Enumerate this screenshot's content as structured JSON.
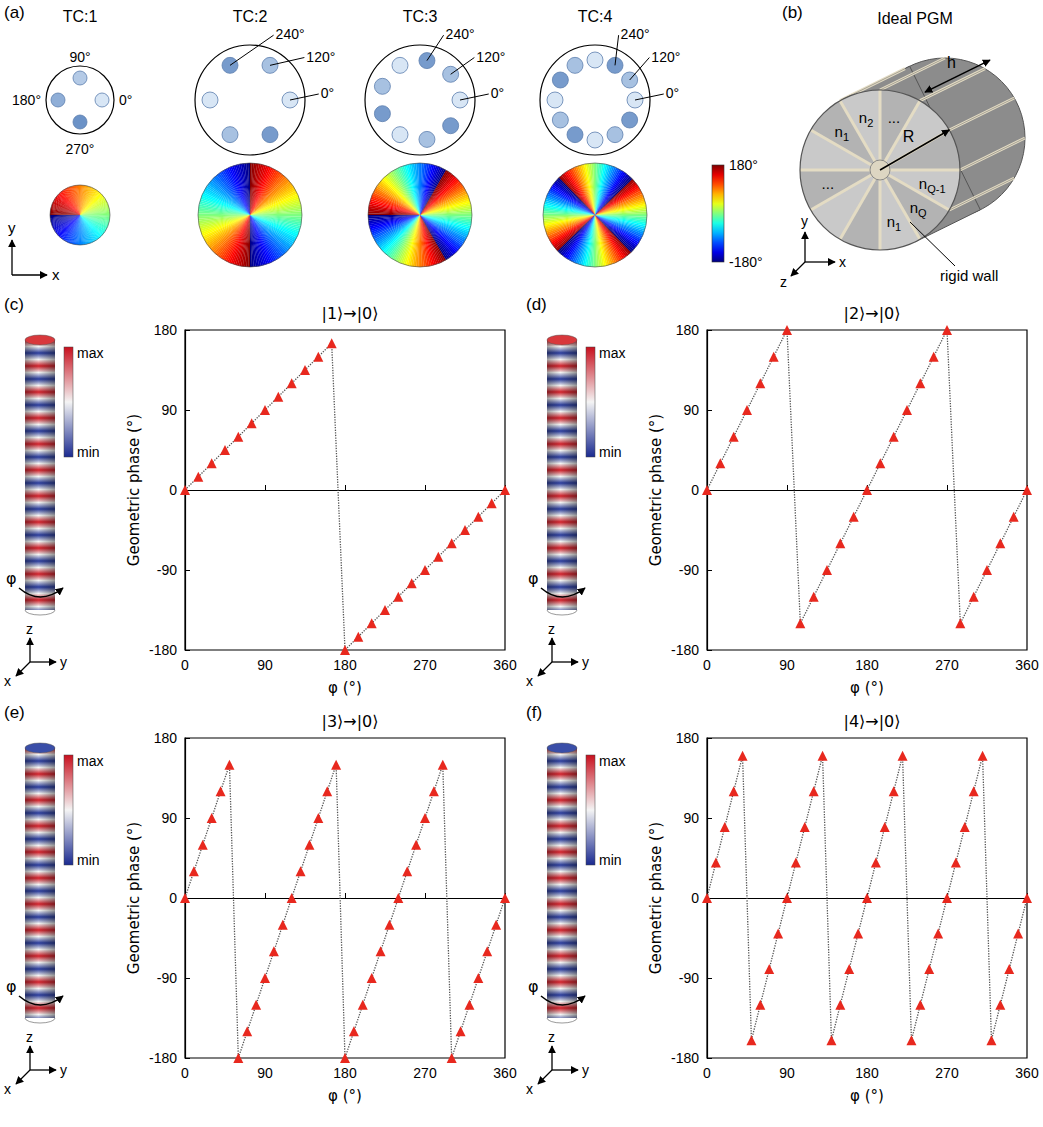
{
  "panels": {
    "a": {
      "letter": "(a)",
      "groups": [
        {
          "title": "TC:1",
          "charge": 1,
          "sources": 4,
          "labels": [
            {
              "text": "0°",
              "source": 0
            },
            {
              "text": "90°",
              "source": 1
            },
            {
              "text": "180°",
              "source": 2
            },
            {
              "text": "270°",
              "source": 3
            }
          ]
        },
        {
          "title": "TC:2",
          "charge": 2,
          "sources": 6,
          "labels": [
            {
              "text": "0°",
              "source": 0
            },
            {
              "text": "120°",
              "source": 1
            },
            {
              "text": "240°",
              "source": 2
            }
          ]
        },
        {
          "title": "TC:3",
          "charge": 3,
          "sources": 9,
          "labels": [
            {
              "text": "0°",
              "source": 0
            },
            {
              "text": "120°",
              "source": 1
            },
            {
              "text": "240°",
              "source": 2
            }
          ]
        },
        {
          "title": "TC:4",
          "charge": 4,
          "sources": 12,
          "labels": [
            {
              "text": "0°",
              "source": 0
            },
            {
              "text": "120°",
              "source": 1
            },
            {
              "text": "240°",
              "source": 2
            }
          ]
        }
      ],
      "colorbar": {
        "range": [
          -180,
          180
        ],
        "ticks": [
          {
            "value": 180,
            "label": "180°"
          },
          {
            "value": -180,
            "label": "-180°"
          }
        ]
      },
      "axes": {
        "x": "x",
        "y": "y"
      }
    },
    "b": {
      "letter": "(b)",
      "title": "Ideal PGM",
      "sector_labels": [
        {
          "text": "n",
          "sub": "1"
        },
        {
          "text": "n",
          "sub": "2"
        },
        {
          "text": "..."
        },
        {
          "text": "n",
          "sub": "Q-1"
        },
        {
          "text": "n",
          "sub": "Q"
        },
        {
          "text": "n",
          "sub": "1"
        },
        {
          "text": "..."
        }
      ],
      "h": "h",
      "R": "R",
      "wall": "rigid wall",
      "axes": {
        "x": "x",
        "y": "y",
        "z": "z"
      }
    }
  },
  "chart_data": [
    {
      "panel": "(c)",
      "type": "line",
      "title": "|1⟩→|0⟩",
      "x_label": "φ (°)",
      "y_label": "Geometric phase (°)",
      "x": [
        0,
        15,
        30,
        45,
        60,
        75,
        90,
        105,
        120,
        135,
        150,
        165,
        180,
        195,
        210,
        225,
        240,
        255,
        270,
        285,
        300,
        315,
        330,
        345,
        360
      ],
      "values": [
        0,
        15,
        30,
        45,
        60,
        75,
        90,
        105,
        120,
        135,
        150,
        165,
        -180,
        -165,
        -150,
        -135,
        -120,
        -105,
        -90,
        -75,
        -60,
        -45,
        -30,
        -15,
        0
      ],
      "color": "#e8281e",
      "marker": "triangle",
      "line_style": "dotted",
      "xlim": [
        0,
        360
      ],
      "xticks": [
        0,
        90,
        180,
        270,
        360
      ],
      "ylim": [
        -180,
        180
      ],
      "yticks": [
        -180,
        -90,
        0,
        90,
        180
      ],
      "grid": false,
      "cylinder": {
        "max": "max",
        "min": "min",
        "angle": "φ",
        "axes": {
          "x": "x",
          "y": "y",
          "z": "z"
        }
      }
    },
    {
      "panel": "(d)",
      "type": "line",
      "title": "|2⟩→|0⟩",
      "x_label": "φ (°)",
      "y_label": "Geometric phase (°)",
      "x": [
        0,
        15,
        30,
        45,
        60,
        75,
        90,
        105,
        120,
        135,
        150,
        165,
        180,
        195,
        210,
        225,
        240,
        255,
        270,
        285,
        300,
        315,
        330,
        345,
        360
      ],
      "values": [
        0,
        30,
        60,
        90,
        120,
        150,
        180,
        -150,
        -120,
        -90,
        -60,
        -30,
        0,
        30,
        60,
        90,
        120,
        150,
        180,
        -150,
        -120,
        -90,
        -60,
        -30,
        0
      ],
      "color": "#e8281e",
      "marker": "triangle",
      "line_style": "dotted",
      "xlim": [
        0,
        360
      ],
      "xticks": [
        0,
        90,
        180,
        270,
        360
      ],
      "ylim": [
        -180,
        180
      ],
      "yticks": [
        -180,
        -90,
        0,
        90,
        180
      ],
      "grid": false,
      "cylinder": {
        "max": "max",
        "min": "min",
        "angle": "φ",
        "axes": {
          "x": "x",
          "y": "y",
          "z": "z"
        }
      }
    },
    {
      "panel": "(e)",
      "type": "line",
      "title": "|3⟩→|0⟩",
      "x_label": "φ (°)",
      "y_label": "Geometric phase (°)",
      "x": [
        0,
        10,
        20,
        30,
        40,
        50,
        60,
        70,
        80,
        90,
        100,
        110,
        120,
        130,
        140,
        150,
        160,
        170,
        180,
        190,
        200,
        210,
        220,
        230,
        240,
        250,
        260,
        270,
        280,
        290,
        300,
        310,
        320,
        330,
        340,
        350,
        360
      ],
      "values": [
        0,
        30,
        60,
        90,
        120,
        150,
        -180,
        -150,
        -120,
        -90,
        -60,
        -30,
        0,
        30,
        60,
        90,
        120,
        150,
        -180,
        -150,
        -120,
        -90,
        -60,
        -30,
        0,
        30,
        60,
        90,
        120,
        150,
        -180,
        -150,
        -120,
        -90,
        -60,
        -30,
        0
      ],
      "color": "#e8281e",
      "marker": "triangle",
      "line_style": "dotted",
      "xlim": [
        0,
        360
      ],
      "xticks": [
        0,
        90,
        180,
        270,
        360
      ],
      "ylim": [
        -180,
        180
      ],
      "yticks": [
        -180,
        -90,
        0,
        90,
        180
      ],
      "grid": false,
      "cylinder": {
        "max": "max",
        "min": "min",
        "angle": "φ",
        "axes": {
          "x": "x",
          "y": "y",
          "z": "z"
        }
      }
    },
    {
      "panel": "(f)",
      "type": "line",
      "title": "|4⟩→|0⟩",
      "x_label": "φ (°)",
      "y_label": "Geometric phase (°)",
      "x": [
        0,
        10,
        20,
        30,
        40,
        50,
        60,
        70,
        80,
        90,
        100,
        110,
        120,
        130,
        140,
        150,
        160,
        170,
        180,
        190,
        200,
        210,
        220,
        230,
        240,
        250,
        260,
        270,
        280,
        290,
        300,
        310,
        320,
        330,
        340,
        350,
        360
      ],
      "values": [
        0,
        40,
        80,
        120,
        160,
        -160,
        -120,
        -80,
        -40,
        0,
        40,
        80,
        120,
        160,
        -160,
        -120,
        -80,
        -40,
        0,
        40,
        80,
        120,
        160,
        -160,
        -120,
        -80,
        -40,
        0,
        40,
        80,
        120,
        160,
        -160,
        -120,
        -80,
        -40,
        0
      ],
      "color": "#e8281e",
      "marker": "triangle",
      "line_style": "dotted",
      "xlim": [
        0,
        360
      ],
      "xticks": [
        0,
        90,
        180,
        270,
        360
      ],
      "ylim": [
        -180,
        180
      ],
      "yticks": [
        -180,
        -90,
        0,
        90,
        180
      ],
      "grid": false,
      "cylinder": {
        "max": "max",
        "min": "min",
        "angle": "φ",
        "axes": {
          "x": "x",
          "y": "y",
          "z": "z"
        }
      }
    }
  ]
}
